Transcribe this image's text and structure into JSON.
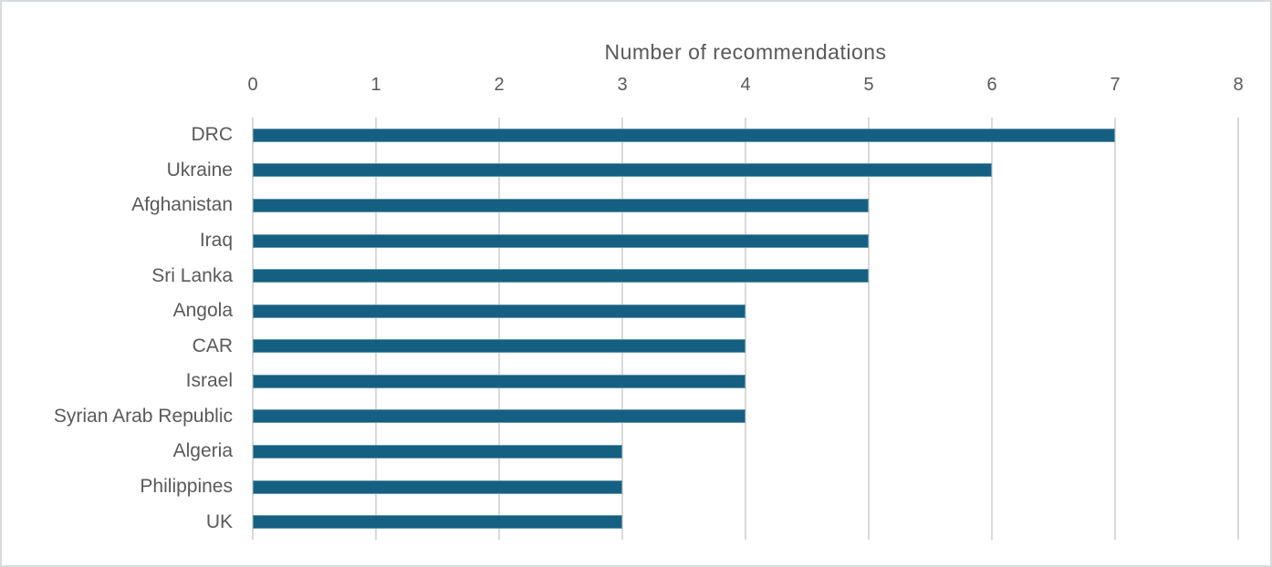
{
  "chart_data": {
    "type": "bar",
    "orientation": "horizontal",
    "title": "Number of recommendations",
    "categories": [
      "DRC",
      "Ukraine",
      "Afghanistan",
      "Iraq",
      "Sri Lanka",
      "Angola",
      "CAR",
      "Israel",
      "Syrian Arab Republic",
      "Algeria",
      "Philippines",
      "UK"
    ],
    "values": [
      7,
      6,
      5,
      5,
      5,
      4,
      4,
      4,
      4,
      3,
      3,
      3
    ],
    "xlabel": "Number of recommendations",
    "ylabel": "",
    "xlim": [
      0,
      8
    ],
    "xticks": [
      "0",
      "1",
      "2",
      "3",
      "4",
      "5",
      "6",
      "7",
      "8"
    ],
    "axis_position": "top",
    "grid": true,
    "legend": "none",
    "colors": {
      "bar": "#156082",
      "text": "#595959",
      "gridline": "#d9d9d9",
      "frame_border": "#d9dcde",
      "background": "#ffffff"
    }
  }
}
